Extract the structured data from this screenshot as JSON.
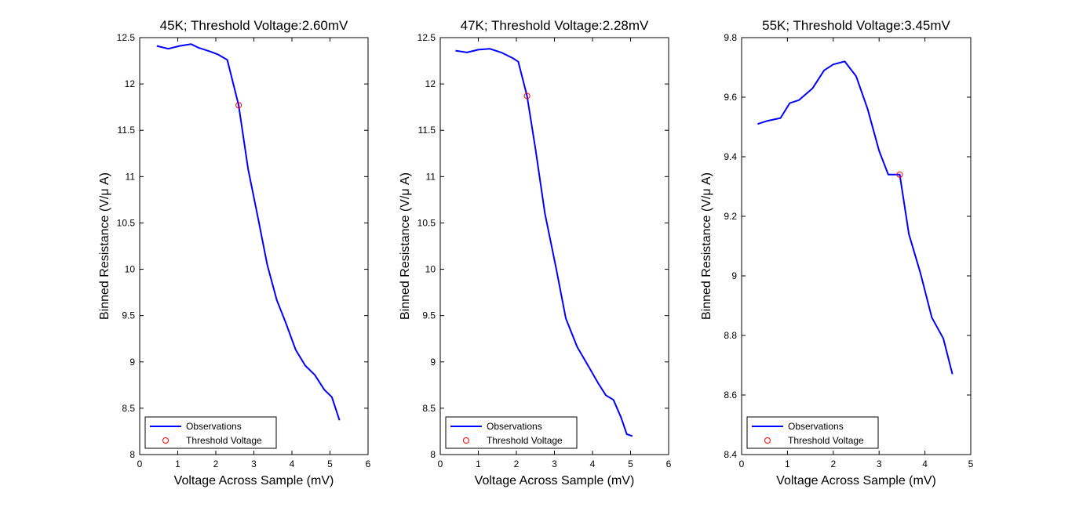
{
  "chart_data": [
    {
      "type": "line",
      "title": "45K; Threshold Voltage:2.60mV",
      "xlabel": "Voltage Across Sample (mV)",
      "ylabel": "Binned Resistance (V/μ A)",
      "xlim": [
        0,
        6
      ],
      "ylim": [
        8,
        12.5
      ],
      "xticks": [
        "0",
        "1",
        "2",
        "3",
        "4",
        "5",
        "6"
      ],
      "yticks": [
        "8",
        "8.5",
        "9",
        "9.5",
        "10",
        "10.5",
        "11",
        "11.5",
        "12",
        "12.5"
      ],
      "grid": false,
      "legend_position": "bottom-left",
      "series": [
        {
          "name": "Observations",
          "color": "#0000ff",
          "style": "line",
          "x": [
            0.45,
            0.75,
            1.05,
            1.35,
            1.55,
            1.85,
            2.05,
            2.3,
            2.6,
            2.85,
            3.1,
            3.35,
            3.6,
            3.85,
            4.1,
            4.35,
            4.6,
            4.85,
            5.05,
            5.25
          ],
          "y": [
            12.41,
            12.38,
            12.41,
            12.43,
            12.39,
            12.35,
            12.32,
            12.26,
            11.77,
            11.08,
            10.57,
            10.05,
            9.67,
            9.41,
            9.13,
            8.96,
            8.86,
            8.7,
            8.62,
            8.37
          ]
        },
        {
          "name": "Threshold Voltage",
          "color": "#ff0000",
          "style": "circle",
          "x": [
            2.6
          ],
          "y": [
            11.77
          ]
        }
      ]
    },
    {
      "type": "line",
      "title": "47K; Threshold Voltage:2.28mV",
      "xlabel": "Voltage Across Sample (mV)",
      "ylabel": "Binned Resistance (V/μ A)",
      "xlim": [
        0,
        6
      ],
      "ylim": [
        8,
        12.5
      ],
      "xticks": [
        "0",
        "1",
        "2",
        "3",
        "4",
        "5",
        "6"
      ],
      "yticks": [
        "8",
        "8.5",
        "9",
        "9.5",
        "10",
        "10.5",
        "11",
        "11.5",
        "12",
        "12.5"
      ],
      "grid": false,
      "legend_position": "bottom-left",
      "series": [
        {
          "name": "Observations",
          "color": "#0000ff",
          "style": "line",
          "x": [
            0.4,
            0.7,
            1.0,
            1.3,
            1.6,
            1.9,
            2.05,
            2.28,
            2.5,
            2.75,
            3.05,
            3.3,
            3.6,
            3.9,
            4.15,
            4.35,
            4.55,
            4.75,
            4.9,
            5.05
          ],
          "y": [
            12.36,
            12.34,
            12.37,
            12.38,
            12.34,
            12.28,
            12.24,
            11.87,
            11.3,
            10.6,
            10.0,
            9.47,
            9.16,
            8.95,
            8.77,
            8.64,
            8.59,
            8.4,
            8.22,
            8.2
          ]
        },
        {
          "name": "Threshold Voltage",
          "color": "#ff0000",
          "style": "circle",
          "x": [
            2.28
          ],
          "y": [
            11.87
          ]
        }
      ]
    },
    {
      "type": "line",
      "title": "55K; Threshold Voltage:3.45mV",
      "xlabel": "Voltage Across Sample (mV)",
      "ylabel": "Binned Resistance (V/μ A)",
      "xlim": [
        0,
        5
      ],
      "ylim": [
        8.4,
        9.8
      ],
      "xticks": [
        "0",
        "1",
        "2",
        "3",
        "4",
        "5"
      ],
      "yticks": [
        "8.4",
        "8.6",
        "8.8",
        "9",
        "9.2",
        "9.4",
        "9.6",
        "9.8"
      ],
      "grid": false,
      "legend_position": "bottom-left",
      "series": [
        {
          "name": "Observations",
          "color": "#0000ff",
          "style": "line",
          "x": [
            0.35,
            0.55,
            0.85,
            1.05,
            1.25,
            1.55,
            1.8,
            2.0,
            2.25,
            2.5,
            2.75,
            3.0,
            3.2,
            3.45,
            3.65,
            3.9,
            4.15,
            4.4,
            4.6
          ],
          "y": [
            9.51,
            9.52,
            9.53,
            9.58,
            9.59,
            9.63,
            9.69,
            9.71,
            9.72,
            9.67,
            9.56,
            9.42,
            9.34,
            9.34,
            9.14,
            9.01,
            8.86,
            8.79,
            8.67
          ]
        },
        {
          "name": "Threshold Voltage",
          "color": "#ff0000",
          "style": "circle",
          "x": [
            3.45
          ],
          "y": [
            9.34
          ]
        }
      ]
    }
  ]
}
